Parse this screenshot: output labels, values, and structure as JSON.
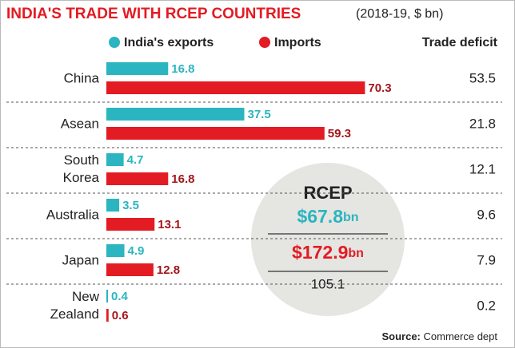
{
  "chart_data": {
    "type": "bar",
    "title": "INDIA'S TRADE WITH RCEP COUNTRIES",
    "subtitle": "(2018-19, $ bn)",
    "categories": [
      "China",
      "Asean",
      "South Korea",
      "Australia",
      "Japan",
      "New Zealand"
    ],
    "series": [
      {
        "name": "India's exports",
        "color": "#2bb5c0",
        "values": [
          16.8,
          37.5,
          4.7,
          3.5,
          4.9,
          0.4
        ]
      },
      {
        "name": "Imports",
        "color": "#e31b23",
        "values": [
          70.3,
          59.3,
          16.8,
          13.1,
          12.8,
          0.6
        ]
      }
    ],
    "xlim": [
      0,
      75
    ],
    "deficit_header": "Trade deficit",
    "trade_deficit": [
      53.5,
      21.8,
      12.1,
      9.6,
      7.9,
      0.2
    ],
    "rcep": {
      "title": "RCEP",
      "exports": "$67.8",
      "imports": "$172.9",
      "unit": "bn",
      "deficit": 105.1
    },
    "source_label": "Source:",
    "source": "Commerce dept"
  }
}
